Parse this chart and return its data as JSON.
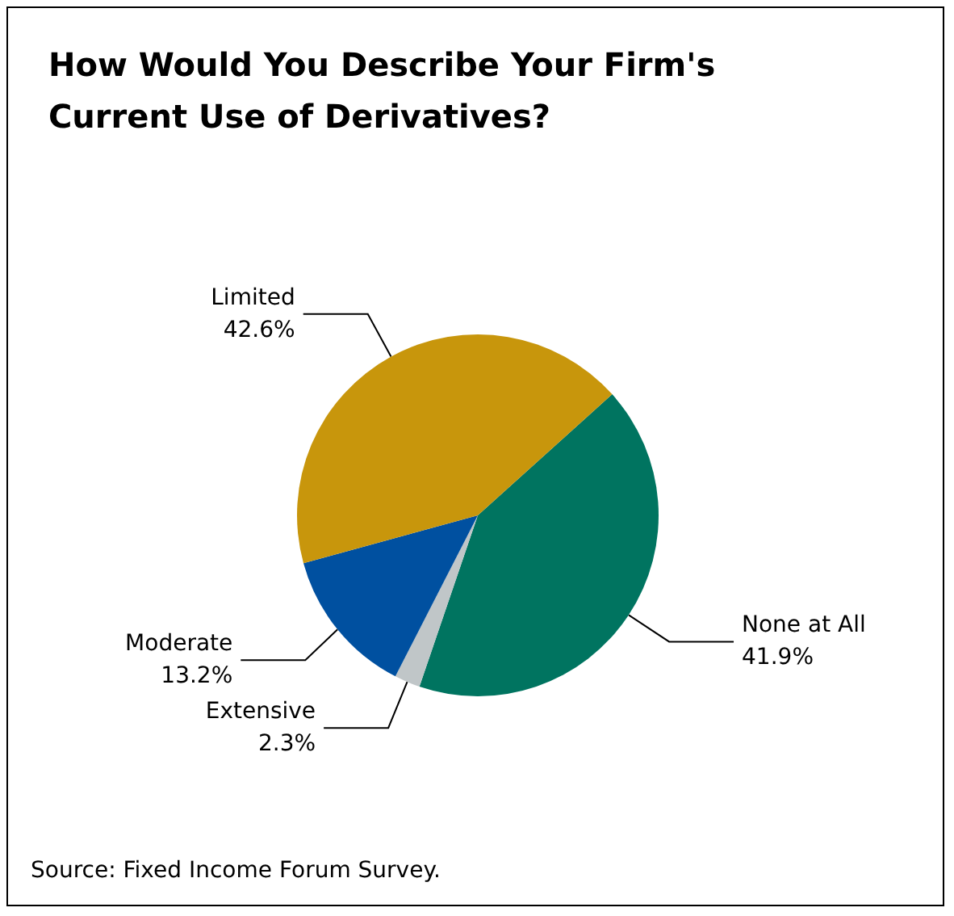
{
  "chart_data": {
    "type": "pie",
    "title": "How Would You Describe Your Firm's\nCurrent Use of Derivatives?",
    "categories": [
      "None at All",
      "Extensive",
      "Moderate",
      "Limited"
    ],
    "values": [
      41.9,
      2.3,
      13.2,
      42.6
    ],
    "colors": [
      "#007460",
      "#c0c6c8",
      "#0050a0",
      "#c8960c"
    ],
    "value_labels": [
      "41.9%",
      "2.3%",
      "13.2%",
      "42.6%"
    ],
    "annotations": [
      "Source: Fixed Income Forum Survey."
    ]
  }
}
